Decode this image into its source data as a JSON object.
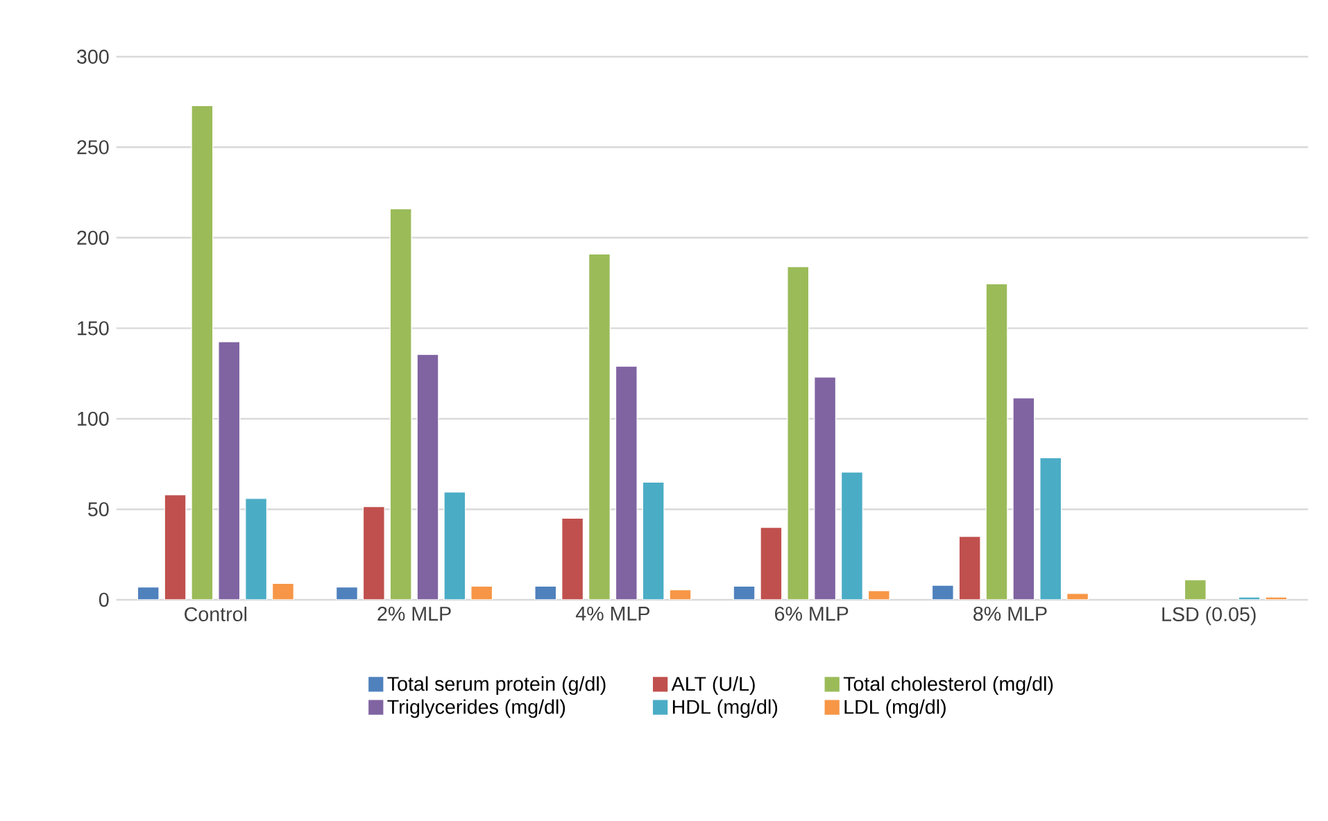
{
  "chart_data": {
    "type": "bar",
    "categories": [
      "Control",
      "2% MLP",
      "4% MLP",
      "6% MLP",
      "8% MLP",
      "LSD (0.05)"
    ],
    "series": [
      {
        "name": "Total serum protein (g/dl)",
        "color": "#4f81bd",
        "values": [
          7,
          7,
          7.5,
          7.5,
          8,
          null
        ]
      },
      {
        "name": "ALT (U/L)",
        "color": "#c0504d",
        "values": [
          58,
          51.5,
          45,
          40,
          35,
          null
        ]
      },
      {
        "name": "Total cholesterol (mg/dl)",
        "color": "#9bbb59",
        "values": [
          273,
          216,
          191,
          184,
          174.5,
          11
        ]
      },
      {
        "name": "Triglycerides (mg/dl)",
        "color": "#8064a2",
        "values": [
          142.5,
          135.5,
          129,
          123,
          111.5,
          null
        ]
      },
      {
        "name": "HDL (mg/dl)",
        "color": "#4bacc6",
        "values": [
          56,
          59.5,
          65,
          70.5,
          78.5,
          1.5
        ]
      },
      {
        "name": "LDL (mg/dl)",
        "color": "#f79646",
        "values": [
          9,
          7.5,
          5.5,
          5,
          3.5,
          1.5
        ]
      }
    ],
    "ylim": [
      0,
      300
    ],
    "yticks": [
      0,
      50,
      100,
      150,
      200,
      250,
      300
    ],
    "grid": "y",
    "legend": "bottom"
  }
}
